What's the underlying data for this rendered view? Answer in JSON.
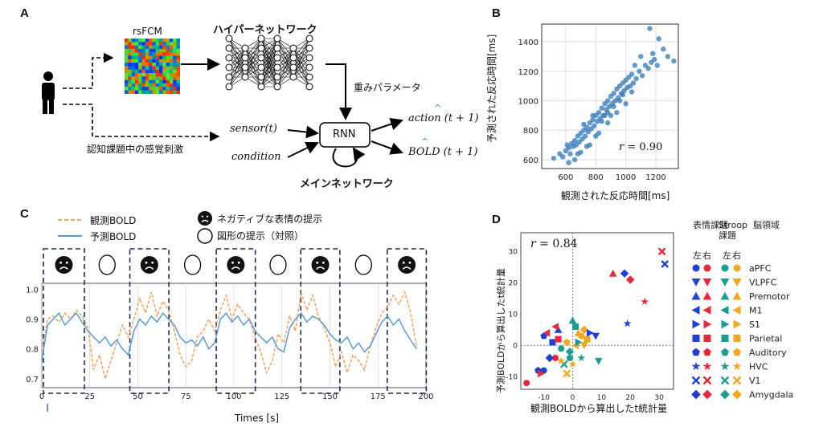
{
  "panels": {
    "a": "A",
    "b": "B",
    "c": "C",
    "d": "D"
  },
  "panel_a": {
    "rsfcm_label": "rsFCM",
    "hypernetwork_label": "ハイパーネットワーク",
    "weights_label": "重みパラメータ",
    "stimulus_label": "認知課題中の感覚刺激",
    "sensor_label": "sensor(t)",
    "condition_label": "condition",
    "rnn_label": "RNN",
    "action_label": "action (t + 1)",
    "bold_label": "BOLD (t + 1)",
    "main_network_label": "メインネットワーク"
  },
  "chart_data": [
    {
      "id": "B",
      "type": "scatter",
      "xlabel": "観測された反応時間[ms]",
      "ylabel": "予測された反応時間[ms]",
      "xlim": [
        440,
        1350
      ],
      "ylim": [
        540,
        1520
      ],
      "xticks": [
        600,
        800,
        1000,
        1200
      ],
      "yticks": [
        600,
        800,
        1000,
        1200,
        1400
      ],
      "grid": true,
      "annotation": "r = 0.90",
      "color": "#2f78b5",
      "points": [
        [
          520,
          610
        ],
        [
          560,
          640
        ],
        [
          580,
          620
        ],
        [
          600,
          660
        ],
        [
          610,
          700
        ],
        [
          620,
          680
        ],
        [
          630,
          640
        ],
        [
          640,
          710
        ],
        [
          650,
          690
        ],
        [
          660,
          730
        ],
        [
          670,
          700
        ],
        [
          680,
          760
        ],
        [
          690,
          720
        ],
        [
          700,
          780
        ],
        [
          710,
          740
        ],
        [
          720,
          800
        ],
        [
          730,
          760
        ],
        [
          740,
          820
        ],
        [
          750,
          790
        ],
        [
          760,
          850
        ],
        [
          770,
          810
        ],
        [
          780,
          870
        ],
        [
          790,
          830
        ],
        [
          800,
          900
        ],
        [
          810,
          860
        ],
        [
          820,
          920
        ],
        [
          830,
          880
        ],
        [
          840,
          950
        ],
        [
          850,
          900
        ],
        [
          860,
          980
        ],
        [
          870,
          940
        ],
        [
          880,
          1000
        ],
        [
          890,
          960
        ],
        [
          900,
          1030
        ],
        [
          910,
          980
        ],
        [
          920,
          1050
        ],
        [
          930,
          1000
        ],
        [
          940,
          1080
        ],
        [
          950,
          1020
        ],
        [
          960,
          1100
        ],
        [
          970,
          1050
        ],
        [
          980,
          1120
        ],
        [
          990,
          1070
        ],
        [
          1000,
          1140
        ],
        [
          1010,
          1090
        ],
        [
          1020,
          1160
        ],
        [
          1030,
          1100
        ],
        [
          1040,
          1180
        ],
        [
          1050,
          1120
        ],
        [
          1070,
          1150
        ],
        [
          1090,
          1200
        ],
        [
          1110,
          1170
        ],
        [
          1130,
          1240
        ],
        [
          1150,
          1220
        ],
        [
          1170,
          1260
        ],
        [
          1190,
          1280
        ],
        [
          1210,
          1240
        ],
        [
          1250,
          1350
        ],
        [
          1280,
          1300
        ],
        [
          1160,
          1490
        ],
        [
          1220,
          1420
        ],
        [
          1320,
          1270
        ],
        [
          700,
          650
        ],
        [
          760,
          700
        ],
        [
          820,
          780
        ],
        [
          880,
          850
        ],
        [
          940,
          920
        ],
        [
          1000,
          980
        ],
        [
          680,
          640
        ],
        [
          740,
          690
        ],
        [
          860,
          900
        ],
        [
          920,
          960
        ],
        [
          980,
          1040
        ],
        [
          1040,
          1060
        ],
        [
          780,
          900
        ],
        [
          840,
          860
        ],
        [
          900,
          900
        ],
        [
          960,
          1000
        ],
        [
          720,
          840
        ],
        [
          660,
          600
        ],
        [
          1060,
          1240
        ],
        [
          1100,
          1300
        ],
        [
          1180,
          1320
        ],
        [
          620,
          580
        ],
        [
          800,
          760
        ],
        [
          880,
          920
        ]
      ]
    },
    {
      "id": "C",
      "type": "line",
      "xlabel": "Times [s]",
      "ylabel": "",
      "xlim": [
        0,
        200
      ],
      "ylim": [
        0.67,
        1.02
      ],
      "xticks": [
        0,
        25,
        50,
        75,
        100,
        125,
        150,
        175,
        200
      ],
      "yticks": [
        0.7,
        0.8,
        0.9,
        1.0
      ],
      "legend": "top-left",
      "negative_blocks": [
        [
          0,
          23
        ],
        [
          45,
          67
        ],
        [
          90,
          112
        ],
        [
          134,
          156
        ],
        [
          179,
          201
        ]
      ],
      "series": [
        {
          "name": "観測BOLD",
          "color": "#f4a261",
          "dashed": true,
          "x": [
            0,
            3,
            6,
            9,
            12,
            15,
            18,
            21,
            24,
            27,
            30,
            33,
            36,
            39,
            42,
            45,
            48,
            51,
            54,
            57,
            60,
            63,
            66,
            69,
            72,
            75,
            78,
            81,
            84,
            87,
            90,
            93,
            96,
            99,
            102,
            105,
            108,
            111,
            114,
            117,
            120,
            123,
            126,
            129,
            132,
            135,
            138,
            141,
            144,
            147,
            150,
            153,
            156,
            159,
            162,
            165,
            168,
            171,
            174,
            177,
            180,
            183,
            186,
            189,
            192,
            195
          ],
          "y": [
            0.79,
            0.9,
            0.91,
            0.89,
            0.92,
            0.9,
            0.93,
            0.91,
            0.87,
            0.73,
            0.78,
            0.7,
            0.76,
            0.82,
            0.88,
            0.84,
            0.9,
            0.97,
            0.92,
            0.99,
            0.91,
            0.96,
            0.93,
            0.86,
            0.78,
            0.74,
            0.76,
            0.84,
            0.86,
            0.9,
            0.86,
            0.93,
            0.98,
            0.9,
            0.95,
            0.92,
            0.9,
            0.84,
            0.79,
            0.72,
            0.76,
            0.85,
            0.82,
            0.91,
            0.86,
            0.99,
            0.93,
            0.98,
            0.91,
            0.87,
            0.82,
            0.74,
            0.79,
            0.72,
            0.78,
            0.76,
            0.73,
            0.81,
            0.87,
            0.92,
            0.94,
            0.98,
            0.95,
            0.99,
            0.92,
            0.81
          ]
        },
        {
          "name": "予測BOLD",
          "color": "#5b9bd5",
          "dashed": false,
          "x": [
            0,
            3,
            6,
            9,
            12,
            15,
            18,
            21,
            24,
            27,
            30,
            33,
            36,
            39,
            42,
            45,
            48,
            51,
            54,
            57,
            60,
            63,
            66,
            69,
            72,
            75,
            78,
            81,
            84,
            87,
            90,
            93,
            96,
            99,
            102,
            105,
            108,
            111,
            114,
            117,
            120,
            123,
            126,
            129,
            132,
            135,
            138,
            141,
            144,
            147,
            150,
            153,
            156,
            159,
            162,
            165,
            168,
            171,
            174,
            177,
            180,
            183,
            186,
            189,
            192,
            195
          ],
          "y": [
            0.76,
            0.88,
            0.9,
            0.92,
            0.88,
            0.9,
            0.92,
            0.89,
            0.86,
            0.84,
            0.82,
            0.84,
            0.81,
            0.83,
            0.8,
            0.78,
            0.86,
            0.9,
            0.88,
            0.91,
            0.89,
            0.92,
            0.9,
            0.88,
            0.84,
            0.82,
            0.83,
            0.81,
            0.84,
            0.8,
            0.82,
            0.9,
            0.92,
            0.89,
            0.91,
            0.88,
            0.9,
            0.86,
            0.84,
            0.82,
            0.84,
            0.8,
            0.79,
            0.87,
            0.9,
            0.92,
            0.89,
            0.91,
            0.9,
            0.88,
            0.85,
            0.83,
            0.82,
            0.84,
            0.8,
            0.82,
            0.79,
            0.81,
            0.85,
            0.89,
            0.91,
            0.88,
            0.9,
            0.86,
            0.83,
            0.8
          ]
        }
      ],
      "legend_items": [
        {
          "label": "ネガティブな表情の提示",
          "icon": "sad-face-icon"
        },
        {
          "label": "図形の提示（対照）",
          "icon": "circle-icon"
        }
      ]
    },
    {
      "id": "D",
      "type": "scatter",
      "xlabel": "観測BOLDから算出したt統計量",
      "ylabel": "予測BOLDから算出したt統計量",
      "xlim": [
        -18,
        35
      ],
      "ylim": [
        -14,
        36
      ],
      "xticks": [
        -10,
        0,
        10,
        20,
        30
      ],
      "yticks": [
        -10,
        0,
        10,
        20,
        30
      ],
      "annotation": "r = 0.84",
      "legend_headers": [
        "表情課題",
        "Stroop課題",
        "脳領域"
      ],
      "legend_sub": [
        "左",
        "右",
        "左",
        "右"
      ],
      "regions": [
        "aPFC",
        "VLPFC",
        "Premotor",
        "M1",
        "S1",
        "Parietal",
        "Auditory",
        "HVC",
        "V1",
        "Amygdala"
      ],
      "colors": {
        "face_left": "#1f3fd6",
        "face_right": "#e8283a",
        "stroop_left": "#1b9e8f",
        "stroop_right": "#f2a81d"
      },
      "points": [
        {
          "x": 31,
          "y": 30,
          "c": "face_right",
          "m": "x"
        },
        {
          "x": 32,
          "y": 26,
          "c": "face_left",
          "m": "x"
        },
        {
          "x": 18,
          "y": 23,
          "c": "face_left",
          "m": "diamond"
        },
        {
          "x": 20,
          "y": 21,
          "c": "face_right",
          "m": "diamond"
        },
        {
          "x": 14,
          "y": 23,
          "c": "face_right",
          "m": "triangle"
        },
        {
          "x": 25,
          "y": 14,
          "c": "face_right",
          "m": "star"
        },
        {
          "x": 19,
          "y": 7,
          "c": "face_left",
          "m": "star"
        },
        {
          "x": -10,
          "y": 3,
          "c": "face_left",
          "m": "pentagon"
        },
        {
          "x": -9,
          "y": 4,
          "c": "face_right",
          "m": "tri_left"
        },
        {
          "x": -7,
          "y": 1,
          "c": "face_left",
          "m": "square"
        },
        {
          "x": -5,
          "y": 2,
          "c": "face_right",
          "m": "square"
        },
        {
          "x": -4,
          "y": -1,
          "c": "stroop_left",
          "m": "circle"
        },
        {
          "x": -2,
          "y": 1,
          "c": "stroop_right",
          "m": "pentagon"
        },
        {
          "x": 0,
          "y": 8,
          "c": "stroop_left",
          "m": "triangle"
        },
        {
          "x": 1,
          "y": 6,
          "c": "stroop_left",
          "m": "square"
        },
        {
          "x": 2,
          "y": 4,
          "c": "stroop_right",
          "m": "triangle"
        },
        {
          "x": 3,
          "y": 3,
          "c": "stroop_right",
          "m": "circle"
        },
        {
          "x": 4,
          "y": 5,
          "c": "stroop_right",
          "m": "diamond"
        },
        {
          "x": 5,
          "y": 2,
          "c": "stroop_right",
          "m": "square"
        },
        {
          "x": 6,
          "y": 4,
          "c": "face_left",
          "m": "tri_right"
        },
        {
          "x": 8,
          "y": 3,
          "c": "face_left",
          "m": "tri_down"
        },
        {
          "x": 9,
          "y": -5,
          "c": "stroop_left",
          "m": "tri_down"
        },
        {
          "x": 1,
          "y": 0,
          "c": "stroop_right",
          "m": "tri_left"
        },
        {
          "x": -1,
          "y": -2,
          "c": "stroop_left",
          "m": "diamond"
        },
        {
          "x": -3,
          "y": -6,
          "c": "stroop_left",
          "m": "x"
        },
        {
          "x": -4,
          "y": -5,
          "c": "stroop_right",
          "m": "star"
        },
        {
          "x": -6,
          "y": -4,
          "c": "face_right",
          "m": "circle"
        },
        {
          "x": -8,
          "y": -4,
          "c": "face_left",
          "m": "diamond"
        },
        {
          "x": -10,
          "y": -8,
          "c": "face_left",
          "m": "circle"
        },
        {
          "x": -12,
          "y": -8,
          "c": "face_left",
          "m": "pentagon"
        },
        {
          "x": -11,
          "y": -9,
          "c": "face_right",
          "m": "tri_right"
        },
        {
          "x": -16,
          "y": -12,
          "c": "face_right",
          "m": "circle"
        },
        {
          "x": -2,
          "y": -9,
          "c": "stroop_right",
          "m": "x"
        },
        {
          "x": 0,
          "y": -6,
          "c": "stroop_right",
          "m": "star"
        },
        {
          "x": 3,
          "y": -4,
          "c": "stroop_left",
          "m": "star"
        },
        {
          "x": -1,
          "y": -4,
          "c": "stroop_left",
          "m": "pentagon"
        },
        {
          "x": 2,
          "y": 1,
          "c": "stroop_left",
          "m": "tri_right"
        },
        {
          "x": -5,
          "y": 5,
          "c": "face_left",
          "m": "triangle"
        },
        {
          "x": -6,
          "y": 6,
          "c": "face_right",
          "m": "tri_left"
        },
        {
          "x": 4,
          "y": 0,
          "c": "stroop_right",
          "m": "tri_down"
        }
      ]
    }
  ]
}
